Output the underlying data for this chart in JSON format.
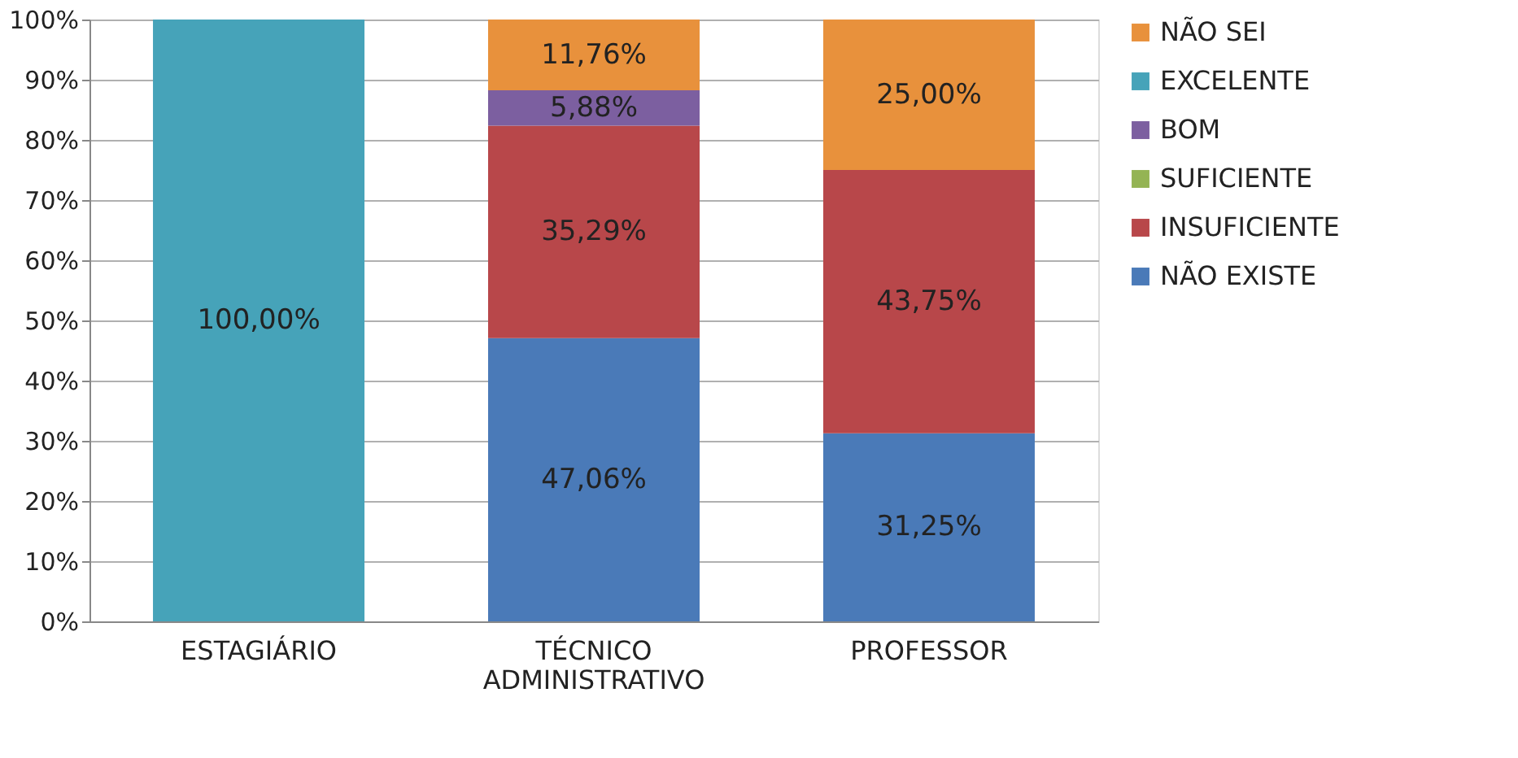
{
  "chart_data": {
    "type": "bar",
    "stacked": true,
    "categories": [
      "ESTAGIÁRIO",
      "TÉCNICO ADMINISTRATIVO",
      "PROFESSOR"
    ],
    "series": [
      {
        "name": "NÃO EXISTE",
        "color": "#4a7ab8",
        "values": [
          0,
          47.06,
          31.25
        ],
        "value_labels": [
          null,
          "47,06%",
          "31,25%"
        ]
      },
      {
        "name": "INSUFICIENTE",
        "color": "#b8474a",
        "values": [
          0,
          35.29,
          43.75
        ],
        "value_labels": [
          null,
          "35,29%",
          "43,75%"
        ]
      },
      {
        "name": "SUFICIENTE",
        "color": "#94b454",
        "values": [
          0,
          0,
          0
        ],
        "value_labels": [
          null,
          null,
          null
        ]
      },
      {
        "name": "BOM",
        "color": "#7c5fa0",
        "values": [
          0,
          5.88,
          0
        ],
        "value_labels": [
          null,
          "5,88%",
          null
        ]
      },
      {
        "name": "EXCELENTE",
        "color": "#46a3b9",
        "values": [
          100,
          0,
          0
        ],
        "value_labels": [
          "100,00%",
          null,
          null
        ]
      },
      {
        "name": "NÃO SEI",
        "color": "#e8913c",
        "values": [
          0,
          11.76,
          25
        ],
        "value_labels": [
          null,
          "11,76%",
          "25,00%"
        ]
      }
    ],
    "ylim": [
      0,
      100
    ],
    "yticks": [
      {
        "value": 0,
        "label": "0%"
      },
      {
        "value": 10,
        "label": "10%"
      },
      {
        "value": 20,
        "label": "20%"
      },
      {
        "value": 30,
        "label": "30%"
      },
      {
        "value": 40,
        "label": "40%"
      },
      {
        "value": 50,
        "label": "50%"
      },
      {
        "value": 60,
        "label": "60%"
      },
      {
        "value": 70,
        "label": "70%"
      },
      {
        "value": 80,
        "label": "80%"
      },
      {
        "value": 90,
        "label": "90%"
      },
      {
        "value": 100,
        "label": "100%"
      }
    ],
    "grid": "y",
    "legend": "right"
  }
}
